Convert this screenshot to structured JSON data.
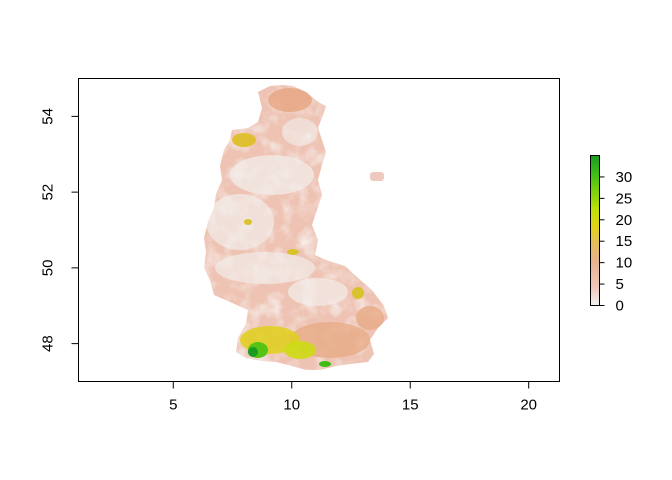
{
  "chart_data": {
    "type": "heatmap",
    "title": "",
    "xlabel": "",
    "ylabel": "",
    "xlim": [
      1,
      21.3
    ],
    "ylim": [
      47,
      55
    ],
    "x_ticks": [
      "5",
      "10",
      "15",
      "20"
    ],
    "y_ticks": [
      "48",
      "50",
      "52",
      "54"
    ],
    "x_tick_values": [
      5,
      10,
      15,
      20
    ],
    "y_tick_values": [
      48,
      50,
      52,
      54
    ],
    "legend": {
      "placement": "right",
      "min": 0,
      "max": 35,
      "ticks": [
        "0",
        "5",
        "10",
        "15",
        "20",
        "25",
        "30"
      ],
      "tick_values": [
        0,
        5,
        10,
        15,
        20,
        25,
        30
      ],
      "colors": [
        "#f2f2f2",
        "#eec9bd",
        "#e8b08c",
        "#e3c05a",
        "#e2d31a",
        "#bfdf0c",
        "#7dd10d",
        "#3ebd19",
        "#1a9a22"
      ]
    },
    "region": "western Germany raster",
    "hotspots": [
      {
        "x": 8.2,
        "y": 47.8,
        "value": 33
      },
      {
        "x": 8.5,
        "y": 47.9,
        "value": 25
      },
      {
        "x": 9.2,
        "y": 47.7,
        "value": 18
      },
      {
        "x": 11.3,
        "y": 47.5,
        "value": 22
      },
      {
        "x": 12.5,
        "y": 49.3,
        "value": 16
      },
      {
        "x": 8.0,
        "y": 53.5,
        "value": 17
      },
      {
        "x": 10.4,
        "y": 50.5,
        "value": 14
      }
    ]
  }
}
